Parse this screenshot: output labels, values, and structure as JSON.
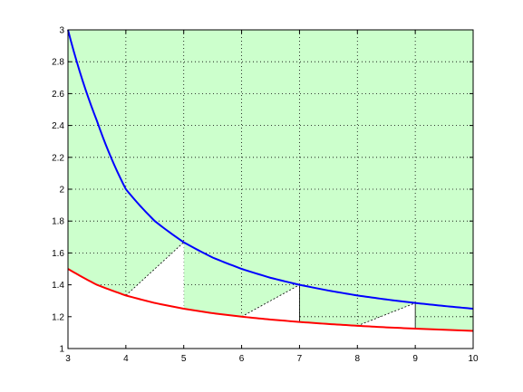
{
  "chart_data": {
    "type": "line",
    "title": "",
    "xlabel": "",
    "ylabel": "",
    "xlim": [
      3,
      10
    ],
    "ylim": [
      1,
      3
    ],
    "x_ticks": [
      "3",
      "4",
      "5",
      "6",
      "7",
      "8",
      "9",
      "10"
    ],
    "y_ticks": [
      "1",
      "1.2",
      "1.4",
      "1.6",
      "1.8",
      "2",
      "2.2",
      "2.4",
      "2.6",
      "2.8",
      "3"
    ],
    "grid": "dotted",
    "grid_shown_over_shaded_region_only": true,
    "colors": {
      "background": "#ffffff",
      "shaded_region": "#ccffcc",
      "upper_curve": "#0000ff",
      "lower_curve": "#ff0000",
      "construction_lines": "#000000"
    },
    "series": [
      {
        "x": [
          3,
          3.5,
          4,
          4.5,
          5,
          5.5,
          6,
          6.5,
          7,
          7.5,
          8,
          8.5,
          9,
          9.5,
          10
        ],
        "values": [
          3.0,
          2.429,
          2.0,
          1.8,
          1.667,
          1.571,
          1.5,
          1.444,
          1.4,
          1.364,
          1.333,
          1.308,
          1.286,
          1.267,
          1.25
        ],
        "color": "#0000ff",
        "role": "upper-curve"
      },
      {
        "x": [
          3,
          3.5,
          4,
          4.5,
          5,
          5.5,
          6,
          6.5,
          7,
          7.5,
          8,
          8.5,
          9,
          9.5,
          10
        ],
        "values": [
          1.5,
          1.4,
          1.333,
          1.286,
          1.25,
          1.222,
          1.2,
          1.182,
          1.167,
          1.154,
          1.143,
          1.133,
          1.125,
          1.118,
          1.111
        ],
        "color": "#ff0000",
        "role": "lower-curve"
      }
    ],
    "white_regions": [
      {
        "x_start": 3,
        "x_end": 4,
        "top_y": 1.5,
        "bottom_y": 1.333,
        "shape": "wedge-under-lower-curve"
      },
      {
        "vertices": [
          [
            4,
            1.333
          ],
          [
            5,
            1.667
          ],
          [
            5,
            1.25
          ]
        ],
        "shape": "triangle"
      },
      {
        "vertices": [
          [
            6,
            1.2
          ],
          [
            7,
            1.4
          ],
          [
            7,
            1.167
          ]
        ],
        "shape": "triangle"
      },
      {
        "vertices": [
          [
            8,
            1.143
          ],
          [
            9,
            1.286
          ],
          [
            9,
            1.125
          ]
        ],
        "shape": "triangle"
      }
    ],
    "construction_segments": [
      {
        "from": [
          4,
          1.333
        ],
        "to": [
          5,
          1.667
        ],
        "style": "dashed"
      },
      {
        "from": [
          6,
          1.2
        ],
        "to": [
          7,
          1.4
        ],
        "style": "dashed"
      },
      {
        "from": [
          7,
          1.4
        ],
        "to": [
          7,
          1.167
        ],
        "style": "solid"
      },
      {
        "from": [
          8,
          1.143
        ],
        "to": [
          9,
          1.286
        ],
        "style": "dashed"
      },
      {
        "from": [
          9,
          1.286
        ],
        "to": [
          9,
          1.125
        ],
        "style": "solid"
      }
    ]
  }
}
